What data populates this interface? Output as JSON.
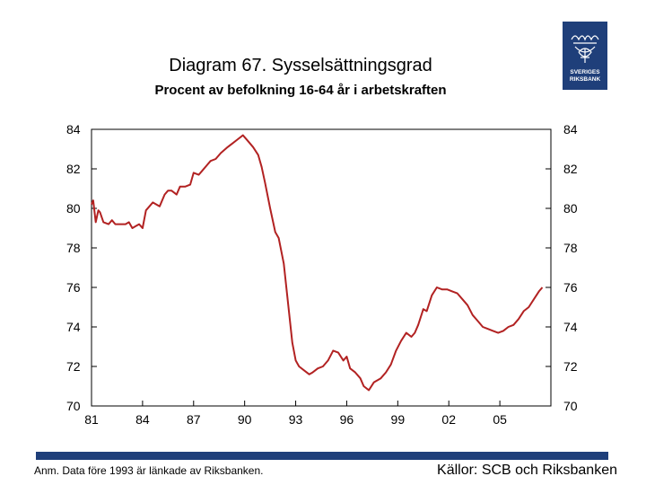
{
  "title": "Diagram 67. Sysselsättningsgrad",
  "subtitle": "Procent av befolkning 16-64 år i arbetskraften",
  "logo_text": [
    "SVERIGES",
    "RIKSBANK"
  ],
  "colors": {
    "line": "#b22222",
    "brand": "#1f3f7a"
  },
  "footer": {
    "note": "Anm. Data före 1993 är länkade av Riksbanken.",
    "source": "Källor: SCB och Riksbanken"
  },
  "chart_data": {
    "type": "line",
    "title": "Diagram 67. Sysselsättningsgrad",
    "subtitle": "Procent av befolkning 16-64 år i arbetskraften",
    "xlabel": "",
    "ylabel": "",
    "ylim": [
      70,
      84
    ],
    "xlim": [
      1981,
      2008
    ],
    "grid": false,
    "legend": "none",
    "y_ticks": [
      70,
      72,
      74,
      76,
      78,
      80,
      82,
      84
    ],
    "y_tick_labels": [
      "70",
      "72",
      "74",
      "76",
      "78",
      "80",
      "82",
      "84"
    ],
    "x_ticks": [
      1981,
      1984,
      1987,
      1990,
      1993,
      1996,
      1999,
      2002,
      2005
    ],
    "x_tick_labels": [
      "81",
      "84",
      "87",
      "90",
      "93",
      "96",
      "99",
      "02",
      "05"
    ],
    "series": [
      {
        "x": [
          1981.0,
          1981.1,
          1981.25,
          1981.4,
          1981.5,
          1981.7,
          1982.0,
          1982.2,
          1982.4,
          1982.6,
          1983.0,
          1983.2,
          1983.4,
          1983.6,
          1983.8,
          1984.0,
          1984.2,
          1984.4,
          1984.6,
          1985.0,
          1985.3,
          1985.5,
          1985.7,
          1986.0,
          1986.2,
          1986.5,
          1986.8,
          1987.0,
          1987.3,
          1987.5,
          1987.8,
          1988.0,
          1988.3,
          1988.6,
          1989.0,
          1989.3,
          1989.6,
          1989.9,
          1990.0,
          1990.2,
          1990.5,
          1990.8,
          1991.0,
          1991.2,
          1991.5,
          1991.8,
          1992.0,
          1992.3,
          1992.6,
          1992.8,
          1993.0,
          1993.2,
          1993.5,
          1993.8,
          1994.0,
          1994.3,
          1994.6,
          1994.9,
          1995.2,
          1995.5,
          1995.8,
          1996.0,
          1996.2,
          1996.5,
          1996.8,
          1997.0,
          1997.3,
          1997.6,
          1998.0,
          1998.3,
          1998.6,
          1998.9,
          1999.2,
          1999.5,
          1999.8,
          2000.0,
          2000.2,
          2000.5,
          2000.7,
          2001.0,
          2001.3,
          2001.6,
          2001.9,
          2002.2,
          2002.5,
          2002.8,
          2003.1,
          2003.4,
          2003.7,
          2004.0,
          2004.3,
          2004.6,
          2004.9,
          2005.2,
          2005.5,
          2005.8,
          2006.1,
          2006.4,
          2006.7,
          2007.0,
          2007.3,
          2007.5
        ],
        "values": [
          80.2,
          80.4,
          79.3,
          79.9,
          79.8,
          79.3,
          79.2,
          79.4,
          79.2,
          79.2,
          79.2,
          79.3,
          79.0,
          79.1,
          79.2,
          79.0,
          79.9,
          80.1,
          80.3,
          80.1,
          80.7,
          80.9,
          80.9,
          80.7,
          81.1,
          81.1,
          81.2,
          81.8,
          81.7,
          81.9,
          82.2,
          82.4,
          82.5,
          82.8,
          83.1,
          83.3,
          83.5,
          83.7,
          83.6,
          83.4,
          83.1,
          82.7,
          82.1,
          81.3,
          80.0,
          78.8,
          78.5,
          77.2,
          74.8,
          73.2,
          72.3,
          72.0,
          71.8,
          71.6,
          71.7,
          71.9,
          72.0,
          72.3,
          72.8,
          72.7,
          72.3,
          72.5,
          71.9,
          71.7,
          71.4,
          71.0,
          70.8,
          71.2,
          71.4,
          71.7,
          72.1,
          72.8,
          73.3,
          73.7,
          73.5,
          73.7,
          74.1,
          74.9,
          74.8,
          75.6,
          76.0,
          75.9,
          75.9,
          75.8,
          75.7,
          75.4,
          75.1,
          74.6,
          74.3,
          74.0,
          73.9,
          73.8,
          73.7,
          73.8,
          74.0,
          74.1,
          74.4,
          74.8,
          75.0,
          75.4,
          75.8,
          76.0
        ]
      }
    ]
  }
}
